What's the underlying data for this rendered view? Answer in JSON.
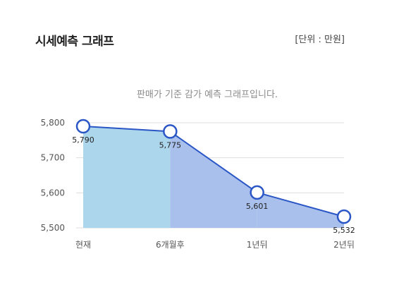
{
  "header": {
    "title": "시세예측 그래프",
    "unit_label": "[단위 : 만원]"
  },
  "colors": {
    "line": "#2a56c6",
    "area_current": "#acd6ec",
    "area_future": "#a9c0ec",
    "grid": "#dddddd",
    "point_fill": "#ffffff"
  },
  "chart_data": {
    "type": "area",
    "title": "판매가 기준 감가 예측 그래프입니다.",
    "categories": [
      "현재",
      "6개월후",
      "1년뒤",
      "2년뒤"
    ],
    "values": [
      5790,
      5775,
      5601,
      5532
    ],
    "value_labels": [
      "5,790",
      "5,775",
      "5,601",
      "5,532"
    ],
    "yticks": [
      5500,
      5600,
      5700,
      5800
    ],
    "ytick_labels": [
      "5,500",
      "5,600",
      "5,700",
      "5,800"
    ],
    "ylim": [
      5500,
      5800
    ],
    "grid": true,
    "legend": "none"
  }
}
